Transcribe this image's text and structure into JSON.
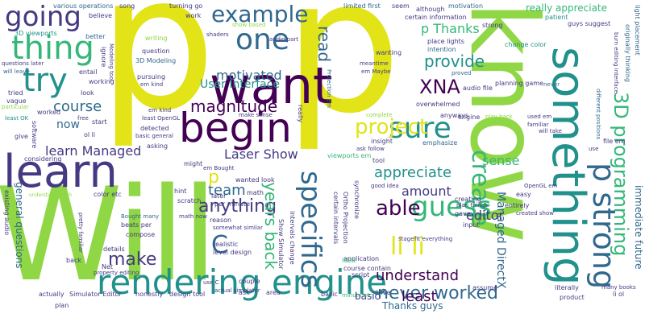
{
  "colors": {
    "background": "#ffffff",
    "yellow": "#e2e418",
    "lime": "#8fd744",
    "green": "#35b779",
    "teal": "#21918c",
    "blue": "#31688e",
    "indigo": "#443a83",
    "purple": "#440154"
  },
  "words": {
    "w001": "Will",
    "w002": "know",
    "w003": "p",
    "w004": "p",
    "w005": "want",
    "w006": "learn",
    "w007": "something",
    "w008": "begin",
    "w009": "rendering engine",
    "w010": "p strong",
    "w011": "thing",
    "w012": "going",
    "w013": "one",
    "w014": "example",
    "w015": "sure",
    "w016": "project",
    "w017": "try",
    "w018": "create",
    "w019": "specifics",
    "w020": "guess",
    "w021": "able",
    "w022": "make",
    "w023": "li li",
    "w024": "C",
    "w025": "3D programming",
    "w026": "XNA",
    "w027": "anything",
    "w028": "provide",
    "w029": "magnitude",
    "w030": "read",
    "w031": "never worked",
    "w032": "years back",
    "w033": "understand",
    "w034": "appreciate",
    "w035": "team",
    "w036": "motivated",
    "w037": "Laser Show",
    "w038": "course",
    "w039": "amount",
    "w040": "p Thanks",
    "w041": "least",
    "w042": "Managed DirectX",
    "w043": "editor",
    "w044": "sense",
    "w045": "learn Managed",
    "w046": "really appreciate",
    "w047": "immediate future",
    "w048": "User Interface",
    "w049": "now",
    "w050": "p",
    "w051": "general questions",
    "w052": "Thanks guys",
    "w053": "basic",
    "w054": "3D viewports",
    "w055": "various operations",
    "w056": "questions later",
    "w057": "will leave",
    "w058": "least OK",
    "w059": "better",
    "w060": "Modeling tool",
    "w061": "3D Modeling",
    "w062": "em kind",
    "w063": "shaders",
    "w064": "audio part",
    "w065": "limited first",
    "w066": "certain information",
    "w067": "motivation",
    "w068": "although",
    "w069": "seem",
    "w070": "strong",
    "w071": "patient",
    "w072": "guys suggest",
    "w073": "place lights",
    "w074": "light placement",
    "w075": "change color",
    "w076": "intention",
    "w077": "wanting",
    "w078": "meantime",
    "w079": "em Maybe",
    "w080": "Projection em",
    "w081": "planning game",
    "w082": "never",
    "w083": "audio file",
    "w084": "proved",
    "w085": "burn editing interface",
    "w086": "originally thinking",
    "w087": "different positions",
    "w088": "overwhelmed",
    "w089": "used em",
    "w090": "familiar",
    "w091": "will take",
    "w092": "file em",
    "w093": "use",
    "w094": "play back",
    "w095": "engine",
    "w096": "anyways",
    "w097": "complete",
    "w098": "insight",
    "w099": "emphasize",
    "w100": "ask follow",
    "w101": "viewports em",
    "w102": "tool",
    "w103": "em Bought",
    "w104": "might",
    "w105": "hint",
    "w106": "look",
    "w107": "wanted",
    "w108": "math",
    "w109": "later",
    "w110": "per minute",
    "w111": "scratch",
    "w112": "beats per",
    "w113": "compose",
    "w114": "Bought many",
    "w115": "math now",
    "w116": "reason",
    "w117": "somewhat similar",
    "w118": "realistic",
    "w119": "level design",
    "w120": "use C",
    "w121": "couple",
    "w122": "actual simulator",
    "w123": "ask",
    "w124": "area",
    "w125": "basic",
    "w126": "minute etc",
    "w127": "drive",
    "w128": "script",
    "w129": "Simulator Editor",
    "w130": "honestly",
    "w131": "design tool",
    "w132": "product",
    "w133": "li ol",
    "w134": "literally",
    "w135": "many books",
    "w136": "assume",
    "w137": "course contain",
    "w138": "application",
    "w139": "idea",
    "w140": "stage",
    "w141": "fit everything",
    "w142": "synchronize",
    "w143": "Ortho Projection",
    "w144": "certain intervals",
    "w145": "intervals change",
    "w146": "Show Simulator",
    "w147": "give",
    "w148": "gave",
    "w149": "entirely",
    "w150": "created show",
    "w151": "easy",
    "w152": "creating",
    "w153": "plan things",
    "w154": "good idea",
    "w155": "input",
    "w156": "OpenGL em",
    "w157": "color etc",
    "w158": "understand much",
    "w159": "existing audio",
    "w160": "considering",
    "w161": "pretty familiar",
    "w162": "property editing",
    "w163": "details",
    "w164": "back",
    "w165": "Net",
    "w166": "actually",
    "w167": "plan",
    "w168": "look",
    "w169": "worked",
    "w170": "ol li",
    "w171": "free",
    "w172": "start",
    "w173": "software",
    "w174": "asking",
    "w175": "detected",
    "w176": "basic general",
    "w177": "least OpenGL",
    "w178": "em kind",
    "w179": "tried",
    "w180": "vague",
    "w181": "particular",
    "w182": "entail",
    "w183": "working",
    "w184": "ignore",
    "w185": "believe",
    "w186": "pursuing",
    "w187": "question",
    "w188": "writing",
    "w189": "turning go",
    "w190": "song",
    "w191": "show based",
    "w192": "work",
    "w193": "really",
    "w194": "make sense"
  }
}
